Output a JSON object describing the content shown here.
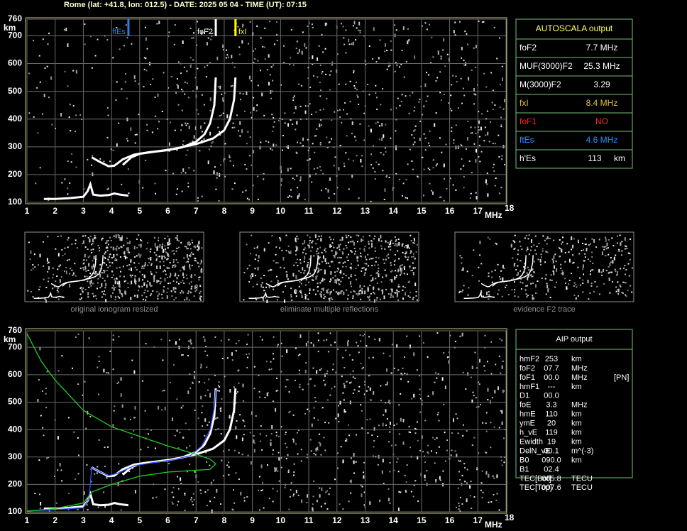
{
  "header": "Rome (lat: +41.8, lon: 012.5) - DATE: 2025 05 04 - TIME (UT): 07:15",
  "chart_data": [
    {
      "type": "line",
      "xlim": [
        1,
        18
      ],
      "ylim": [
        100,
        760
      ],
      "xticks": [
        1,
        2,
        3,
        4,
        5,
        6,
        7,
        8,
        9,
        10,
        11,
        12,
        13,
        14,
        15,
        16,
        17,
        18
      ],
      "yticks": [
        100,
        200,
        300,
        400,
        500,
        600,
        700,
        760
      ],
      "x_label": "MHz",
      "y_label": "km",
      "grid": true,
      "markers": [
        {
          "label": "ftEs",
          "x": 4.6,
          "color": "#2f7fe0"
        },
        {
          "label": "foF2",
          "x": 7.7,
          "color": "#ffffff"
        },
        {
          "label": "fxI",
          "x": 8.4,
          "color": "#ffff00"
        }
      ],
      "series": [
        {
          "color": "#ffffff",
          "x": [
            1.6,
            2.0,
            2.5,
            3.0,
            3.15,
            3.25,
            3.35,
            3.6,
            3.9,
            4.1,
            4.3,
            4.6
          ],
          "values": [
            112,
            112,
            115,
            120,
            140,
            165,
            128,
            124,
            126,
            132,
            128,
            124
          ]
        },
        {
          "color": "#ffffff",
          "x": [
            3.3,
            3.6,
            3.9,
            4.1,
            4.4,
            4.8,
            5.3,
            6.0,
            6.5,
            7.0,
            7.3,
            7.5,
            7.65,
            7.7
          ],
          "values": [
            262,
            245,
            230,
            232,
            255,
            272,
            280,
            288,
            298,
            318,
            345,
            385,
            450,
            550
          ]
        },
        {
          "color": "#ffffff",
          "x": [
            4.4,
            4.7,
            5.0,
            5.5,
            6.2,
            7.0,
            7.6,
            8.0,
            8.2,
            8.35,
            8.4
          ],
          "values": [
            235,
            262,
            275,
            282,
            292,
            310,
            330,
            360,
            400,
            470,
            550
          ]
        }
      ]
    },
    {
      "type": "line",
      "xlim": [
        1,
        18
      ],
      "ylim": [
        100,
        760
      ],
      "xticks": [
        1,
        2,
        3,
        4,
        5,
        6,
        7,
        8,
        9,
        10,
        11,
        12,
        13,
        14,
        15,
        16,
        17,
        18
      ],
      "yticks": [
        100,
        200,
        300,
        400,
        500,
        600,
        700,
        760
      ],
      "x_label": "MHz",
      "y_label": "km",
      "grid": true,
      "series": [
        {
          "color": "#ffffff",
          "x": [
            1.6,
            2.0,
            2.5,
            3.0,
            3.15,
            3.25,
            3.35,
            3.6,
            3.9,
            4.1,
            4.3,
            4.6
          ],
          "values": [
            112,
            112,
            115,
            120,
            140,
            165,
            128,
            124,
            126,
            132,
            128,
            124
          ]
        },
        {
          "color": "#ffffff",
          "x": [
            3.3,
            3.6,
            3.9,
            4.1,
            4.4,
            4.8,
            5.3,
            6.0,
            6.5,
            7.0,
            7.3,
            7.5,
            7.65,
            7.7
          ],
          "values": [
            262,
            245,
            230,
            232,
            255,
            272,
            280,
            288,
            298,
            318,
            345,
            385,
            450,
            550
          ]
        },
        {
          "color": "#ffffff",
          "x": [
            4.4,
            4.7,
            5.0,
            5.5,
            6.2,
            7.0,
            7.6,
            8.0,
            8.2,
            8.35,
            8.4
          ],
          "values": [
            235,
            262,
            275,
            282,
            292,
            310,
            330,
            360,
            400,
            470,
            550
          ]
        },
        {
          "color": "#3050ff",
          "x": [
            1.0,
            2.0,
            3.0,
            3.2,
            3.3,
            3.6,
            3.9,
            4.2,
            4.8,
            5.5,
            6.2,
            6.8,
            7.2,
            7.5,
            7.65,
            7.7
          ],
          "values": [
            103,
            108,
            115,
            150,
            262,
            245,
            232,
            240,
            268,
            280,
            290,
            305,
            340,
            400,
            480,
            545
          ]
        },
        {
          "color": "#22cc22",
          "x": [
            1.0,
            1.5,
            2.0,
            3.0,
            4.0,
            5.0,
            6.0,
            7.0,
            7.5,
            7.7,
            7.5,
            6.0,
            5.0,
            4.0,
            3.3,
            3.0,
            2.0,
            1.0
          ],
          "values": [
            750,
            650,
            580,
            470,
            410,
            375,
            340,
            310,
            292,
            275,
            255,
            245,
            230,
            200,
            172,
            132,
            112,
            102
          ]
        }
      ]
    }
  ],
  "thumbnails": [
    "original ionogram resized",
    "eliminate multiple reflections",
    "evidence F2 trace"
  ],
  "autoscala": {
    "title": "AUTOSCALA output",
    "rows": [
      {
        "label": "foF2",
        "value": "7.7 MHz",
        "color": "#ffffff"
      },
      {
        "label": "MUF(3000)F2",
        "value": "25.3 MHz",
        "color": "#ffffff"
      },
      {
        "label": "M(3000)F2",
        "value": "3.29",
        "color": "#ffffff"
      },
      {
        "label": "fxI",
        "value": "8.4 MHz",
        "color": "#e0c040"
      },
      {
        "label": "foF1",
        "value": "NO",
        "color": "#ff2020"
      },
      {
        "label": "ftEs",
        "value": "4.6 MHz",
        "color": "#2f8fff"
      },
      {
        "label": "h'Es",
        "value": "113",
        "unit": "km",
        "color": "#ffffff"
      }
    ]
  },
  "aip": {
    "title": "AIP output",
    "rows": [
      [
        "hmF2",
        "253",
        "km"
      ],
      [
        "foF2",
        "07.7",
        "MHz"
      ],
      [
        "foF1",
        "00.0",
        "MHz",
        "[PN]"
      ],
      [
        "hmF1",
        "---",
        "km"
      ],
      [
        "D1",
        "00.0"
      ],
      [
        "foE",
        "3.3",
        "MHz"
      ],
      [
        "hmE",
        "110",
        "km"
      ],
      [
        "ymE",
        "20",
        "km"
      ],
      [
        "h_vE",
        "119",
        "km"
      ],
      [
        "Ewidth",
        "19",
        "km"
      ],
      [
        "DelN_vE",
        "00.1",
        "m^(-3)"
      ],
      [
        "B0",
        "090.0",
        "km"
      ],
      [
        "B1",
        "02.4"
      ],
      [
        "TEC[Bot]",
        "005.8",
        "TECU"
      ],
      [
        "TEC[Top]",
        "007.6",
        "TECU"
      ]
    ]
  }
}
